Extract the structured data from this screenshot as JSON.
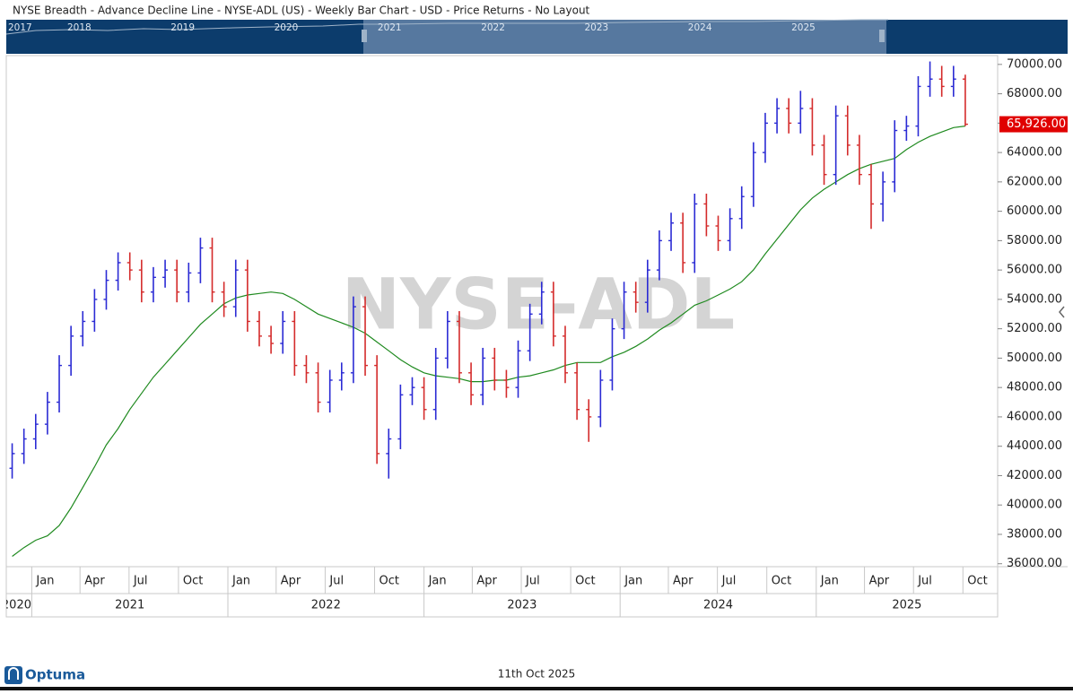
{
  "chart_data": {
    "type": "ohlc",
    "title": "NYSE Breadth - Advance Decline Line - NYSE-ADL (US) - Weekly Bar Chart - USD - Price Returns - No Layout",
    "watermark": "NYSE-ADL",
    "navigator_years": [
      "2017",
      "2018",
      "2019",
      "2020",
      "2021",
      "2022",
      "2023",
      "2024",
      "2025"
    ],
    "footer_date": "11th Oct 2025",
    "logo": "Optuma",
    "x": [
      2020.9,
      2020.96,
      2021.02,
      2021.08,
      2021.14,
      2021.2,
      2021.26,
      2021.32,
      2021.38,
      2021.44,
      2021.5,
      2021.56,
      2021.62,
      2021.68,
      2021.74,
      2021.8,
      2021.86,
      2021.92,
      2021.98,
      2022.04,
      2022.1,
      2022.16,
      2022.22,
      2022.28,
      2022.34,
      2022.4,
      2022.46,
      2022.52,
      2022.58,
      2022.64,
      2022.7,
      2022.76,
      2022.82,
      2022.88,
      2022.94,
      2023.0,
      2023.06,
      2023.12,
      2023.18,
      2023.24,
      2023.3,
      2023.36,
      2023.42,
      2023.48,
      2023.54,
      2023.6,
      2023.66,
      2023.72,
      2023.78,
      2023.84,
      2023.9,
      2023.96,
      2024.02,
      2024.08,
      2024.14,
      2024.2,
      2024.26,
      2024.32,
      2024.38,
      2024.44,
      2024.5,
      2024.56,
      2024.62,
      2024.68,
      2024.74,
      2024.8,
      2024.86,
      2024.92,
      2024.98,
      2025.04,
      2025.1,
      2025.16,
      2025.22,
      2025.28,
      2025.34,
      2025.4,
      2025.46,
      2025.52,
      2025.58,
      2025.64,
      2025.7,
      2025.76
    ],
    "open": [
      42500,
      43500,
      44500,
      45500,
      47000,
      49500,
      51500,
      52500,
      54000,
      55300,
      56500,
      56000,
      54500,
      55500,
      56000,
      54500,
      55800,
      57500,
      54500,
      53500,
      56000,
      52500,
      51500,
      51000,
      52500,
      49500,
      49000,
      47000,
      48500,
      49000,
      53500,
      49500,
      43500,
      44500,
      47500,
      48000,
      46500,
      50000,
      52500,
      49000,
      47500,
      50000,
      48500,
      48000,
      50500,
      53000,
      54500,
      51500,
      49000,
      46500,
      46000,
      48500,
      52000,
      54500,
      53800,
      56000,
      58000,
      59200,
      56500,
      60500,
      59000,
      58000,
      59500,
      61000,
      64000,
      66000,
      67000,
      66000,
      67000,
      64500,
      62500,
      66500,
      64500,
      62500,
      60500,
      62000,
      65500,
      65800,
      68500,
      69000,
      68500,
      69000
    ],
    "high": [
      44200,
      45200,
      46200,
      47700,
      50200,
      52200,
      53200,
      54700,
      56000,
      57200,
      57200,
      56700,
      56200,
      56700,
      56700,
      56500,
      58200,
      58200,
      55200,
      56700,
      56700,
      53200,
      52200,
      53200,
      53200,
      50200,
      49700,
      49200,
      49700,
      54200,
      54200,
      50200,
      45200,
      48200,
      48700,
      48700,
      50700,
      53200,
      53200,
      49700,
      50700,
      50700,
      49200,
      51200,
      53700,
      55200,
      55200,
      52200,
      49700,
      47200,
      49200,
      52700,
      55200,
      55200,
      56700,
      58700,
      59900,
      59900,
      61200,
      61200,
      59700,
      60200,
      61700,
      64700,
      66700,
      67700,
      67700,
      68200,
      67700,
      65200,
      67200,
      67200,
      65200,
      63200,
      62700,
      66200,
      66500,
      69200,
      70200,
      69900,
      69900,
      69300
    ],
    "low": [
      41800,
      42800,
      43800,
      44800,
      46300,
      48800,
      50800,
      51800,
      53300,
      54600,
      55300,
      53800,
      53800,
      54800,
      53800,
      53800,
      55100,
      53800,
      52800,
      52800,
      51800,
      50800,
      50300,
      50300,
      48800,
      48300,
      46300,
      46300,
      47800,
      48300,
      48800,
      42800,
      41800,
      43800,
      46800,
      45800,
      45800,
      49300,
      48300,
      46800,
      46800,
      47800,
      47300,
      47300,
      49800,
      52300,
      50800,
      48300,
      45800,
      44300,
      45300,
      47800,
      51300,
      53100,
      53100,
      55300,
      57300,
      55800,
      55800,
      58300,
      57300,
      57300,
      58800,
      60300,
      63300,
      65300,
      65300,
      65300,
      63800,
      61800,
      61800,
      63800,
      61800,
      58800,
      59300,
      61300,
      64800,
      65100,
      67800,
      67800,
      67800,
      65800
    ],
    "close": [
      43500,
      44500,
      45500,
      47000,
      49500,
      51500,
      52500,
      54000,
      55300,
      56500,
      56000,
      54500,
      55500,
      56000,
      54500,
      55800,
      57500,
      54500,
      53500,
      56000,
      52500,
      51500,
      51000,
      52500,
      49500,
      49000,
      47000,
      48500,
      49000,
      53500,
      49500,
      43500,
      44500,
      47500,
      48000,
      46500,
      50000,
      52500,
      49000,
      47500,
      50000,
      48500,
      48000,
      50500,
      53000,
      54500,
      51500,
      49000,
      46500,
      46000,
      48500,
      52000,
      54500,
      53800,
      56000,
      58000,
      59200,
      56500,
      60500,
      59000,
      58000,
      59500,
      61000,
      64000,
      66000,
      67000,
      66000,
      67000,
      64500,
      62500,
      66500,
      64500,
      62500,
      60500,
      62000,
      65500,
      65800,
      68500,
      69000,
      68500,
      69000,
      65926
    ],
    "up_color": "#2b2bd4",
    "down_color": "#d42b2b",
    "moving_average": {
      "color": "#1f8a1f",
      "values": [
        36500,
        37100,
        37600,
        37900,
        38600,
        39800,
        41200,
        42600,
        44100,
        45200,
        46500,
        47600,
        48700,
        49600,
        50500,
        51400,
        52300,
        53000,
        53700,
        54100,
        54300,
        54400,
        54500,
        54400,
        54000,
        53500,
        53000,
        52700,
        52400,
        52100,
        51700,
        51100,
        50500,
        49900,
        49400,
        49000,
        48800,
        48700,
        48600,
        48400,
        48400,
        48500,
        48500,
        48700,
        48800,
        49000,
        49200,
        49500,
        49700,
        49700,
        49700,
        50100,
        50400,
        50800,
        51300,
        51900,
        52400,
        53000,
        53600,
        53900,
        54300,
        54700,
        55200,
        56000,
        57100,
        58100,
        59100,
        60100,
        60900,
        61500,
        62000,
        62500,
        62900,
        63200,
        63400,
        63600,
        64200,
        64700,
        65100,
        65400,
        65700,
        65800
      ]
    },
    "last_price": {
      "value": 65926,
      "label": "65,926.00",
      "color": "#e00000"
    },
    "xlim": [
      2020.87,
      2025.925
    ],
    "ylim": [
      35800,
      70600
    ],
    "yticks": [
      {
        "value": 36000,
        "label": "36000.00"
      },
      {
        "value": 38000,
        "label": "38000.00"
      },
      {
        "value": 40000,
        "label": "40000.00"
      },
      {
        "value": 42000,
        "label": "42000.00"
      },
      {
        "value": 44000,
        "label": "44000.00"
      },
      {
        "value": 46000,
        "label": "46000.00"
      },
      {
        "value": 48000,
        "label": "48000.00"
      },
      {
        "value": 50000,
        "label": "50000.00"
      },
      {
        "value": 52000,
        "label": "52000.00"
      },
      {
        "value": 54000,
        "label": "54000.00"
      },
      {
        "value": 56000,
        "label": "56000.00"
      },
      {
        "value": 58000,
        "label": "58000.00"
      },
      {
        "value": 60000,
        "label": "60000.00"
      },
      {
        "value": 62000,
        "label": "62000.00"
      },
      {
        "value": 64000,
        "label": "64000.00"
      },
      {
        "value": 66000,
        "label": "66000.00"
      },
      {
        "value": 68000,
        "label": "68000.00"
      },
      {
        "value": 70000,
        "label": "70000.00"
      }
    ],
    "xticks": [
      {
        "value": 2021.0,
        "label": "Jan"
      },
      {
        "value": 2021.246,
        "label": "Apr"
      },
      {
        "value": 2021.496,
        "label": "Jul"
      },
      {
        "value": 2021.748,
        "label": "Oct"
      },
      {
        "value": 2022.0,
        "label": "Jan"
      },
      {
        "value": 2022.246,
        "label": "Apr"
      },
      {
        "value": 2022.496,
        "label": "Jul"
      },
      {
        "value": 2022.748,
        "label": "Oct"
      },
      {
        "value": 2023.0,
        "label": "Jan"
      },
      {
        "value": 2023.246,
        "label": "Apr"
      },
      {
        "value": 2023.496,
        "label": "Jul"
      },
      {
        "value": 2023.748,
        "label": "Oct"
      },
      {
        "value": 2024.0,
        "label": "Jan"
      },
      {
        "value": 2024.246,
        "label": "Apr"
      },
      {
        "value": 2024.496,
        "label": "Jul"
      },
      {
        "value": 2024.748,
        "label": "Oct"
      },
      {
        "value": 2025.0,
        "label": "Jan"
      },
      {
        "value": 2025.246,
        "label": "Apr"
      },
      {
        "value": 2025.496,
        "label": "Jul"
      },
      {
        "value": 2025.748,
        "label": "Oct"
      }
    ],
    "year_ticks": [
      {
        "value": 2020,
        "label": "2020"
      },
      {
        "value": 2021,
        "label": "2021"
      },
      {
        "value": 2022,
        "label": "2022"
      },
      {
        "value": 2023,
        "label": "2023"
      },
      {
        "value": 2024,
        "label": "2024"
      },
      {
        "value": 2025,
        "label": "2025"
      }
    ]
  }
}
